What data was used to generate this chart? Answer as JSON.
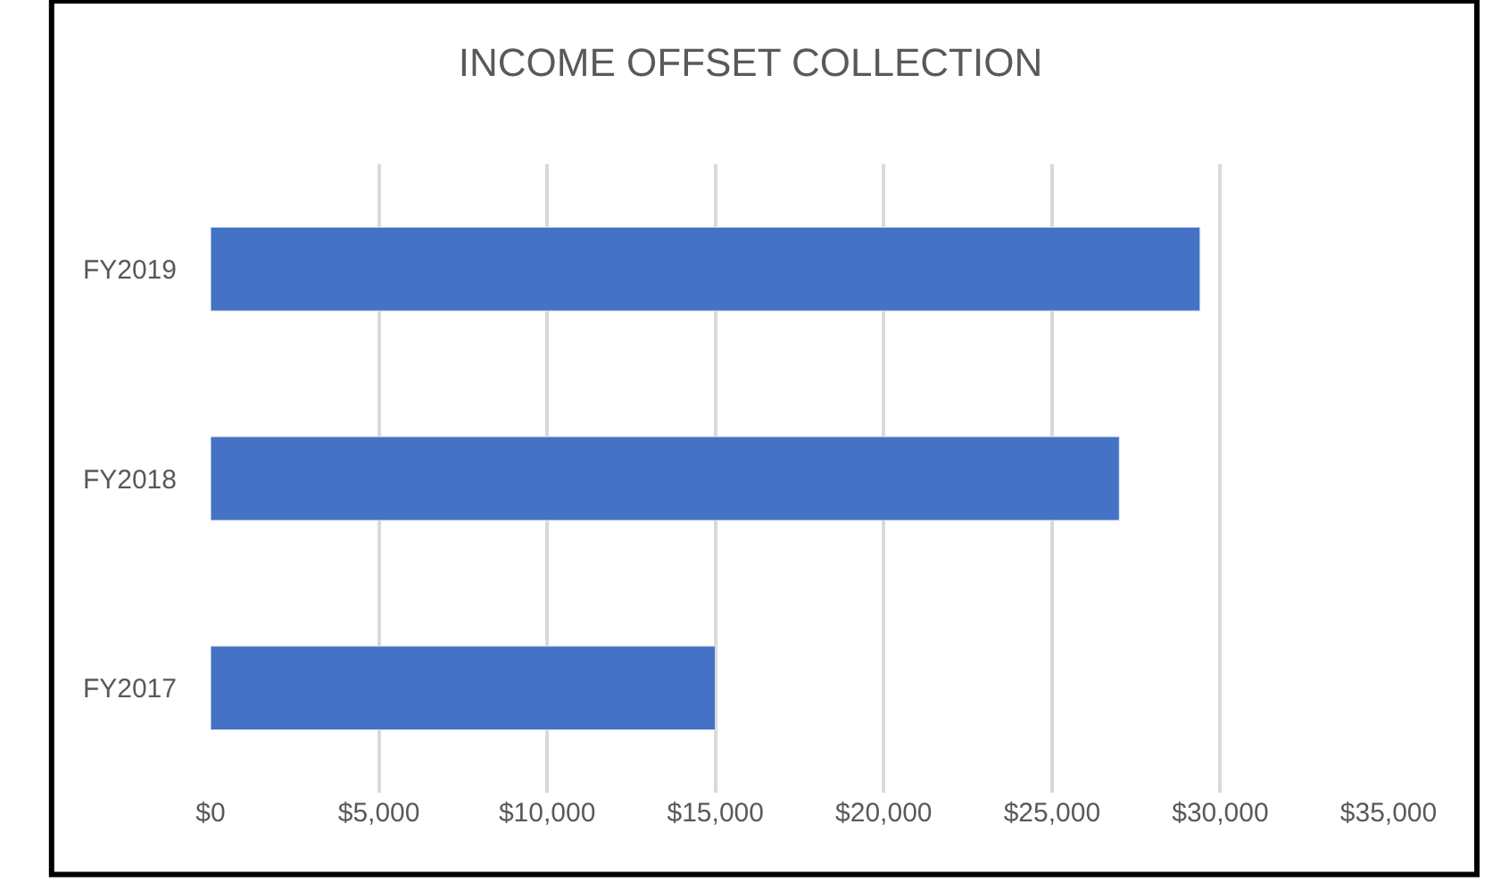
{
  "chart_data": {
    "type": "bar",
    "orientation": "horizontal",
    "title": "INCOME OFFSET COLLECTION",
    "categories": [
      "FY2019",
      "FY2018",
      "FY2017"
    ],
    "values": [
      29400,
      27000,
      15000
    ],
    "color": "#4472c4",
    "xlim": [
      0,
      35000
    ],
    "xticks": [
      {
        "value": 0,
        "label": "$0"
      },
      {
        "value": 5000,
        "label": "$5,000"
      },
      {
        "value": 10000,
        "label": "$10,000"
      },
      {
        "value": 15000,
        "label": "$15,000"
      },
      {
        "value": 20000,
        "label": "$20,000"
      },
      {
        "value": 25000,
        "label": "$25,000"
      },
      {
        "value": 30000,
        "label": "$30,000"
      },
      {
        "value": 35000,
        "label": "$35,000"
      }
    ],
    "grid": "x"
  }
}
